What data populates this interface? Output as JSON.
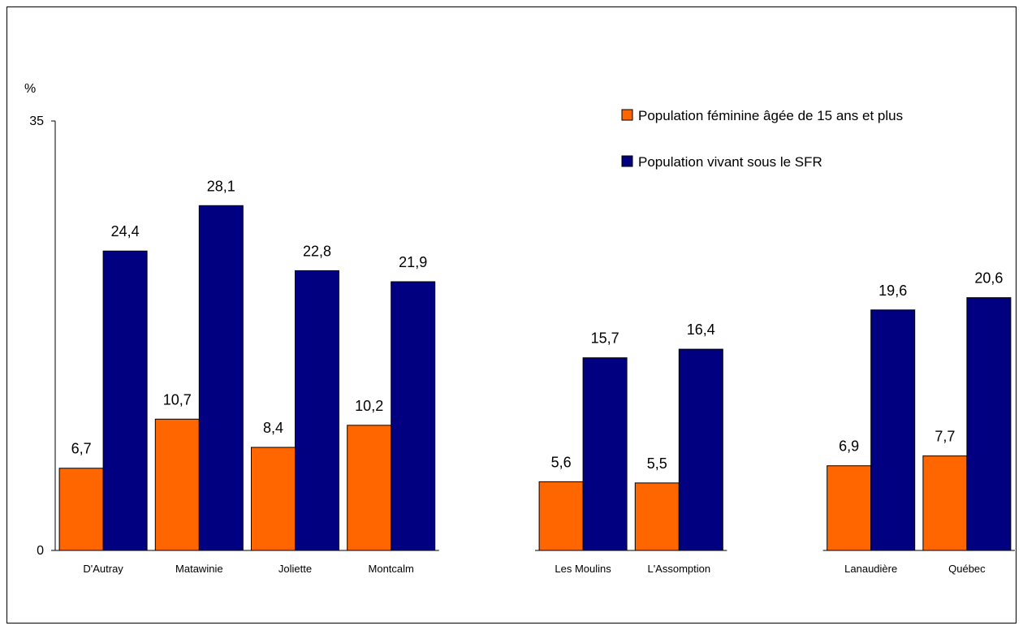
{
  "chart_data": {
    "type": "bar",
    "ylabel": "%",
    "ylim": [
      0,
      35
    ],
    "yticks": [
      "0",
      "35"
    ],
    "categories": [
      "D'Autray",
      "Matawinie",
      "Joliette",
      "Montcalm",
      "Les Moulins",
      "L'Assomption",
      "Lanaudière",
      "Québec"
    ],
    "groups": [
      4,
      2,
      2
    ],
    "series": [
      {
        "name": "Population féminine âgée de 15 ans et plus",
        "color": "#FF6600",
        "values": [
          6.7,
          10.7,
          8.4,
          10.2,
          5.6,
          5.5,
          6.9,
          7.7
        ],
        "labels": [
          "6,7",
          "10,7",
          "8,4",
          "10,2",
          "5,6",
          "5,5",
          "6,9",
          "7,7"
        ]
      },
      {
        "name": "Population vivant sous le SFR",
        "color": "#000080",
        "values": [
          24.4,
          28.1,
          22.8,
          21.9,
          15.7,
          16.4,
          19.6,
          20.6
        ],
        "labels": [
          "24,4",
          "28,1",
          "22,8",
          "21,9",
          "15,7",
          "16,4",
          "19,6",
          "20,6"
        ]
      }
    ],
    "legend_position": "top-right",
    "grid": false
  }
}
